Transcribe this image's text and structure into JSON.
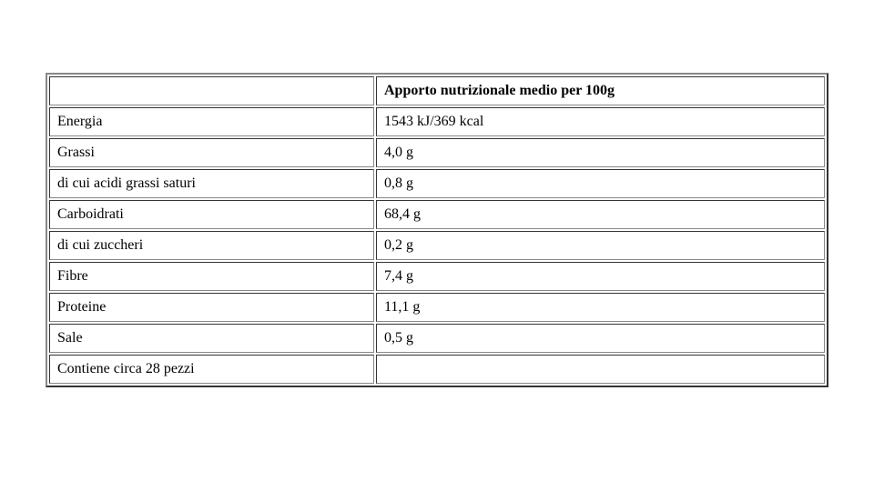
{
  "nutrition_table": {
    "type": "table",
    "header_label": "Apporto nutrizionale medio per 100g",
    "columns": [
      {
        "name": "label",
        "width": "42%",
        "align": "left"
      },
      {
        "name": "value",
        "width": "58%",
        "align": "left"
      }
    ],
    "rows": [
      {
        "label": "Energia",
        "value": "1543 kJ/369 kcal"
      },
      {
        "label": "Grassi",
        "value": "4,0 g"
      },
      {
        "label": "di cui acidi grassi saturi",
        "value": "0,8 g"
      },
      {
        "label": "Carboidrati",
        "value": "68,4 g"
      },
      {
        "label": "di cui zuccheri",
        "value": "0,2 g"
      },
      {
        "label": "Fibre",
        "value": "7,4 g"
      },
      {
        "label": "Proteine",
        "value": "11,1 g"
      },
      {
        "label": "Sale",
        "value": "0,5 g"
      }
    ],
    "footer_label": "Contiene circa 28 pezzi",
    "footer_value": "",
    "border_color": "#888888",
    "background_color": "#ffffff",
    "text_color": "#000000",
    "font_family": "Times New Roman",
    "font_size_pt": 12,
    "header_fontweight": "bold"
  }
}
